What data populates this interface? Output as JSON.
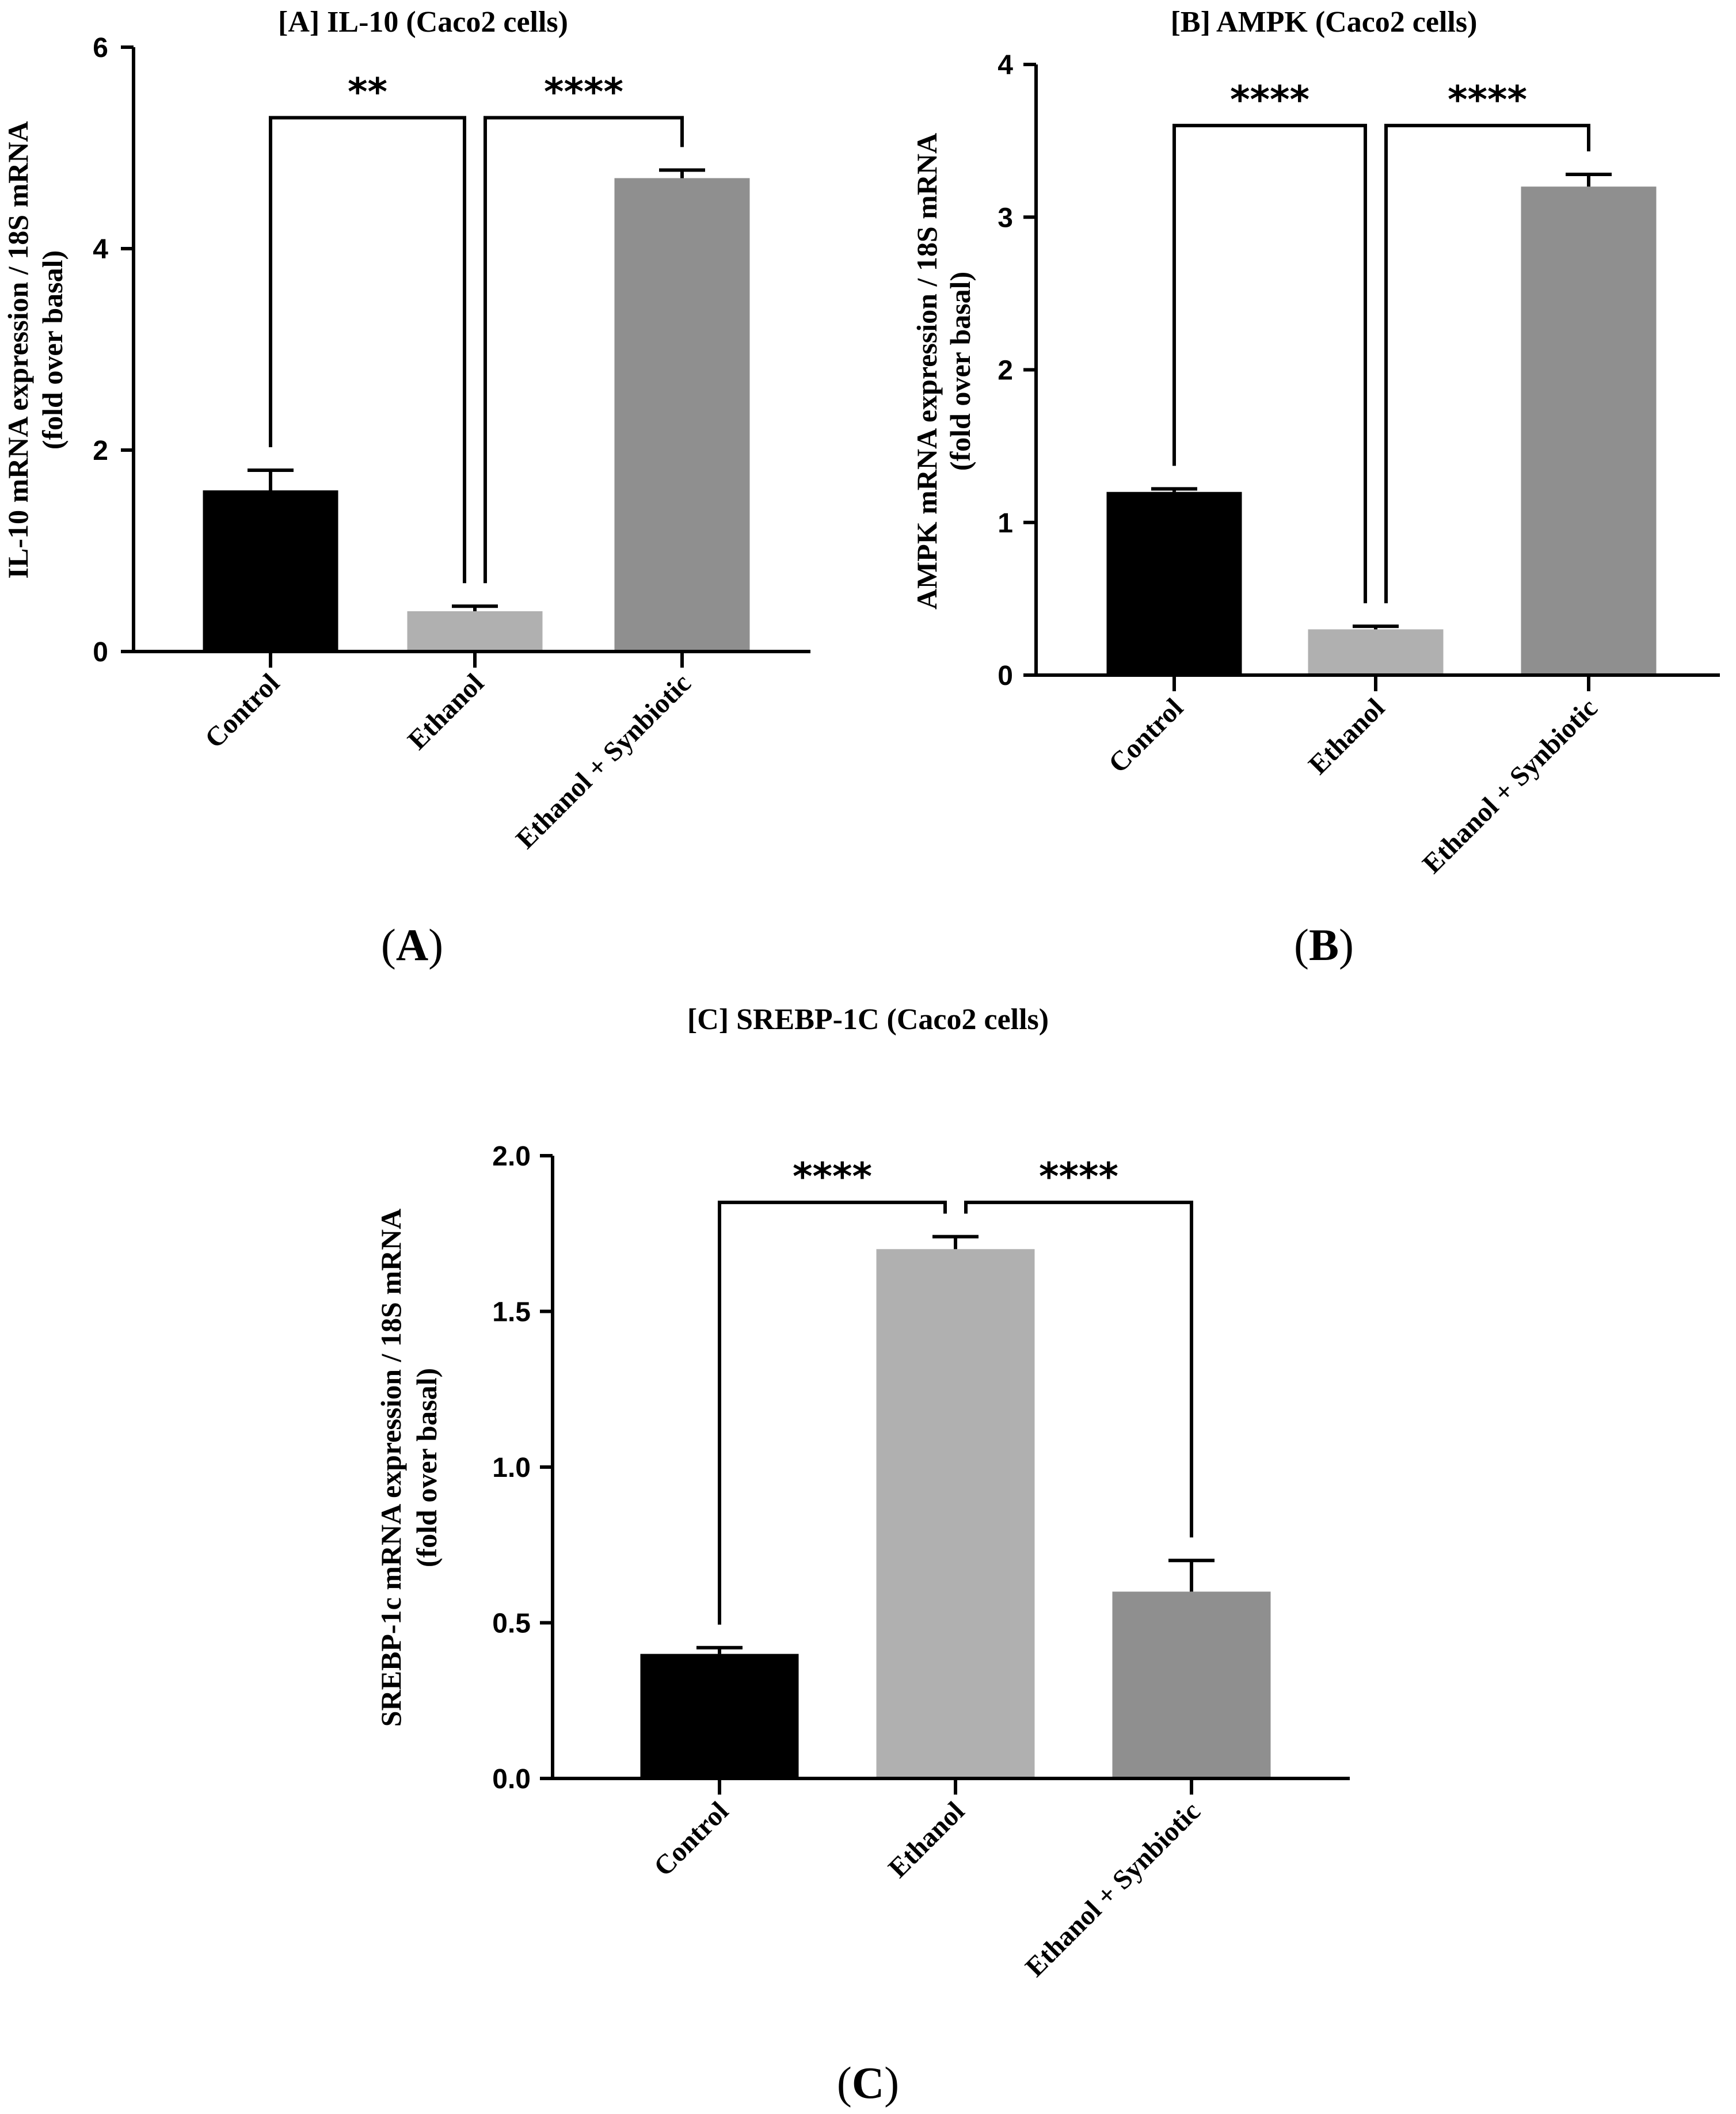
{
  "chart_data": [
    {
      "type": "bar",
      "title": "[A] IL-10 (Caco2 cells)",
      "ylabel": [
        "IL-10 mRNA expression / 18S mRNA",
        "(fold over basal)"
      ],
      "xlabel": "",
      "categories": [
        "Control",
        "Ethanol",
        "Ethanol + Synbiotic"
      ],
      "values": [
        1.6,
        0.4,
        4.7
      ],
      "errors": [
        0.2,
        0.05,
        0.08
      ],
      "colors": [
        "#000000",
        "#b0b0b0",
        "#8f8f8f"
      ],
      "ylim": [
        0,
        6
      ],
      "yticks": [
        0,
        2,
        4,
        6
      ],
      "ytick_labels": [
        "0",
        "2",
        "4",
        "6"
      ],
      "significance": [
        {
          "from": 0,
          "to": 1,
          "label": "**",
          "level": 5.3
        },
        {
          "from": 1,
          "to": 2,
          "label": "****",
          "level": 5.3
        }
      ],
      "panel_label": {
        "open": "(",
        "letter": "A",
        "close": ")"
      }
    },
    {
      "type": "bar",
      "title": "[B] AMPK (Caco2 cells)",
      "ylabel": [
        "AMPK mRNA expression / 18S mRNA",
        "(fold over basal)"
      ],
      "xlabel": "",
      "categories": [
        "Control",
        "Ethanol",
        "Ethanol + Synbiotic"
      ],
      "values": [
        1.2,
        0.3,
        3.2
      ],
      "errors": [
        0.02,
        0.02,
        0.08
      ],
      "colors": [
        "#000000",
        "#b0b0b0",
        "#8f8f8f"
      ],
      "ylim": [
        0,
        4
      ],
      "yticks": [
        0,
        1,
        2,
        3,
        4
      ],
      "ytick_labels": [
        "0",
        "1",
        "2",
        "3",
        "4"
      ],
      "significance": [
        {
          "from": 0,
          "to": 1,
          "label": "****",
          "level": 3.6
        },
        {
          "from": 1,
          "to": 2,
          "label": "****",
          "level": 3.6
        }
      ],
      "panel_label": {
        "open": "(",
        "letter": "B",
        "close": ")"
      }
    },
    {
      "type": "bar",
      "title": "[C] SREBP-1C (Caco2 cells)",
      "ylabel": [
        "SREBP-1c mRNA expression / 18S mRNA",
        "(fold over basal)"
      ],
      "xlabel": "",
      "categories": [
        "Control",
        "Ethanol",
        "Ethanol + Synbiotic"
      ],
      "values": [
        0.4,
        1.7,
        0.6
      ],
      "errors": [
        0.02,
        0.04,
        0.1
      ],
      "colors": [
        "#000000",
        "#b0b0b0",
        "#8f8f8f"
      ],
      "ylim": [
        0,
        2
      ],
      "yticks": [
        0,
        0.5,
        1,
        1.5,
        2
      ],
      "ytick_labels": [
        "0.0",
        "0.5",
        "1.0",
        "1.5",
        "2.0"
      ],
      "significance": [
        {
          "from": 0,
          "to": 1,
          "label": "****",
          "level": 1.85
        },
        {
          "from": 1,
          "to": 2,
          "label": "****",
          "level": 1.85
        }
      ],
      "panel_label": {
        "open": "(",
        "letter": "C",
        "close": ")"
      }
    }
  ]
}
